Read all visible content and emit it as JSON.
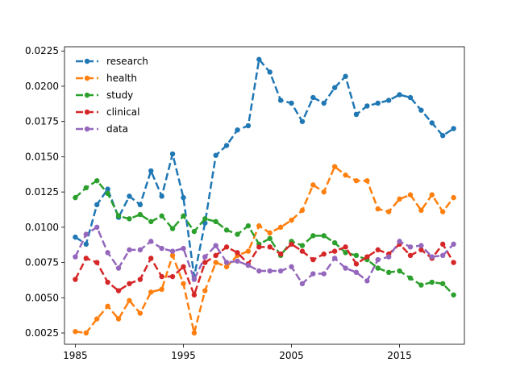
{
  "chart_data": {
    "type": "line",
    "title": "",
    "xlabel": "",
    "ylabel": "",
    "xlim": [
      1984,
      2021
    ],
    "ylim": [
      0.0017,
      0.0228
    ],
    "grid": false,
    "legend_position": "top-left",
    "x_ticks": [
      1985,
      1995,
      2005,
      2015
    ],
    "x_tick_labels": [
      "1985",
      "1995",
      "2005",
      "2015"
    ],
    "y_ticks": [
      0.0025,
      0.005,
      0.0075,
      0.01,
      0.0125,
      0.015,
      0.0175,
      0.02,
      0.0225
    ],
    "y_tick_labels": [
      "0.0025",
      "0.0050",
      "0.0075",
      "0.0100",
      "0.0125",
      "0.0150",
      "0.0175",
      "0.0200",
      "0.0225"
    ],
    "x": [
      1985,
      1986,
      1987,
      1988,
      1989,
      1990,
      1991,
      1992,
      1993,
      1994,
      1995,
      1996,
      1997,
      1998,
      1999,
      2000,
      2001,
      2002,
      2003,
      2004,
      2005,
      2006,
      2007,
      2008,
      2009,
      2010,
      2011,
      2012,
      2013,
      2014,
      2015,
      2016,
      2017,
      2018,
      2019,
      2020
    ],
    "series": [
      {
        "name": "research",
        "color": "#1f77b4",
        "values": [
          0.0093,
          0.0088,
          0.0116,
          0.0127,
          0.0107,
          0.0122,
          0.0116,
          0.014,
          0.0122,
          0.0152,
          0.0121,
          0.0065,
          0.0103,
          0.0151,
          0.0158,
          0.0169,
          0.0172,
          0.0219,
          0.021,
          0.019,
          0.0188,
          0.0175,
          0.0192,
          0.0188,
          0.0199,
          0.0207,
          0.018,
          0.0186,
          0.0188,
          0.019,
          0.0194,
          0.0192,
          0.0183,
          0.0174,
          0.0165,
          0.017
        ]
      },
      {
        "name": "health",
        "color": "#ff7f0e",
        "values": [
          0.0026,
          0.0025,
          0.0035,
          0.0044,
          0.0035,
          0.0048,
          0.0039,
          0.0054,
          0.0056,
          0.008,
          0.006,
          0.0025,
          0.0055,
          0.0075,
          0.0072,
          0.008,
          0.0083,
          0.0101,
          0.0096,
          0.01,
          0.0105,
          0.0112,
          0.013,
          0.0125,
          0.0143,
          0.0137,
          0.0133,
          0.0133,
          0.0113,
          0.0111,
          0.012,
          0.0123,
          0.0112,
          0.0123,
          0.0111,
          0.0121
        ]
      },
      {
        "name": "study",
        "color": "#2ca02c",
        "values": [
          0.0121,
          0.0128,
          0.0133,
          0.0124,
          0.0108,
          0.0106,
          0.0109,
          0.0104,
          0.0108,
          0.0099,
          0.0108,
          0.0097,
          0.0106,
          0.0104,
          0.0098,
          0.0095,
          0.0101,
          0.0088,
          0.0092,
          0.008,
          0.009,
          0.0087,
          0.0094,
          0.0094,
          0.0089,
          0.0082,
          0.008,
          0.0077,
          0.0071,
          0.0068,
          0.0069,
          0.0064,
          0.0059,
          0.0061,
          0.006,
          0.0052
        ]
      },
      {
        "name": "clinical",
        "color": "#d62728",
        "values": [
          0.0063,
          0.0078,
          0.0075,
          0.0061,
          0.0055,
          0.006,
          0.0063,
          0.0078,
          0.0065,
          0.0065,
          0.0072,
          0.0052,
          0.0075,
          0.008,
          0.0086,
          0.0082,
          0.0074,
          0.0086,
          0.0086,
          0.0081,
          0.0088,
          0.0083,
          0.0077,
          0.0081,
          0.0083,
          0.0086,
          0.0074,
          0.0079,
          0.0084,
          0.0081,
          0.0088,
          0.008,
          0.0084,
          0.0078,
          0.0088,
          0.0075
        ]
      },
      {
        "name": "data",
        "color": "#9467bd",
        "values": [
          0.0079,
          0.0095,
          0.01,
          0.0082,
          0.0071,
          0.0084,
          0.0084,
          0.009,
          0.0085,
          0.0083,
          0.0085,
          0.0063,
          0.0079,
          0.0087,
          0.0075,
          0.0076,
          0.0073,
          0.0069,
          0.0069,
          0.0069,
          0.0072,
          0.006,
          0.0067,
          0.0067,
          0.0078,
          0.0071,
          0.0068,
          0.0062,
          0.0077,
          0.0079,
          0.009,
          0.0086,
          0.0087,
          0.0079,
          0.008,
          0.0088
        ]
      }
    ]
  }
}
